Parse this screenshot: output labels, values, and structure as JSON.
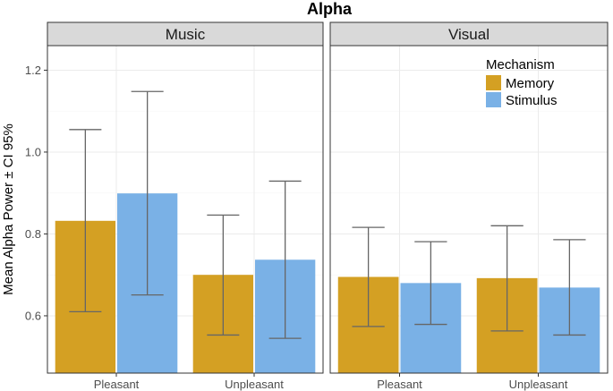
{
  "chart_data": {
    "type": "bar",
    "title": "Alpha",
    "ylabel": "Mean Alpha Power ± CI 95%",
    "xlabel": "",
    "ylim": [
      0.46,
      1.26
    ],
    "yticks": [
      "0.6",
      "0.8",
      "1.0",
      "1.2"
    ],
    "ytick_values": [
      0.6,
      0.8,
      1.0,
      1.2
    ],
    "categories": [
      "Pleasant",
      "Unpleasant"
    ],
    "legend": {
      "title": "Mechanism",
      "position": "top-right",
      "entries": [
        {
          "name": "Memory",
          "color": "#d4a023"
        },
        {
          "name": "Stimulus",
          "color": "#7ab1e6"
        }
      ]
    },
    "facets": [
      {
        "label": "Music",
        "series": [
          {
            "name": "Memory",
            "values": [
              0.832,
              0.7
            ],
            "ci_low": [
              0.61,
              0.553
            ],
            "ci_high": [
              1.055,
              0.846
            ]
          },
          {
            "name": "Stimulus",
            "values": [
              0.899,
              0.737
            ],
            "ci_low": [
              0.651,
              0.545
            ],
            "ci_high": [
              1.148,
              0.929
            ]
          }
        ]
      },
      {
        "label": "Visual",
        "series": [
          {
            "name": "Memory",
            "values": [
              0.695,
              0.692
            ],
            "ci_low": [
              0.574,
              0.563
            ],
            "ci_high": [
              0.816,
              0.82
            ]
          },
          {
            "name": "Stimulus",
            "values": [
              0.68,
              0.669
            ],
            "ci_low": [
              0.579,
              0.553
            ],
            "ci_high": [
              0.781,
              0.786
            ]
          }
        ]
      }
    ]
  }
}
